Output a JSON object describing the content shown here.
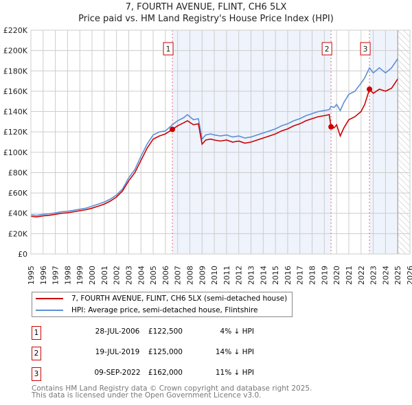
{
  "chart_data": {
    "type": "line",
    "title": "7, FOURTH AVENUE, FLINT, CH6 5LX",
    "subtitle": "Price paid vs. HM Land Registry's House Price Index (HPI)",
    "xlim": [
      1995,
      2026
    ],
    "ylim": [
      0,
      220000
    ],
    "yticks": [
      0,
      20000,
      40000,
      60000,
      80000,
      100000,
      120000,
      140000,
      160000,
      180000,
      200000,
      220000
    ],
    "ytick_labels": [
      "£0",
      "£20K",
      "£40K",
      "£60K",
      "£80K",
      "£100K",
      "£120K",
      "£140K",
      "£160K",
      "£180K",
      "£200K",
      "£220K"
    ],
    "xticks": [
      "1995",
      "1996",
      "1997",
      "1998",
      "1999",
      "2000",
      "2001",
      "2002",
      "2003",
      "2004",
      "2005",
      "2006",
      "2007",
      "2008",
      "2009",
      "2010",
      "2011",
      "2012",
      "2013",
      "2014",
      "2015",
      "2016",
      "2017",
      "2018",
      "2019",
      "2020",
      "2021",
      "2022",
      "2023",
      "2024",
      "2025",
      "2026"
    ],
    "grid": true,
    "series": [
      {
        "name": "7, FOURTH AVENUE, FLINT, CH6 5LX (semi-detached house)",
        "color": "#cc0000",
        "x": [
          1995,
          1995.5,
          1996,
          1996.5,
          1997,
          1997.5,
          1998,
          1998.5,
          1999,
          1999.5,
          2000,
          2000.5,
          2001,
          2001.5,
          2002,
          2002.5,
          2003,
          2003.5,
          2004,
          2004.5,
          2005,
          2005.5,
          2006,
          2006.57,
          2007,
          2007.5,
          2007.8,
          2008.3,
          2008.7,
          2009,
          2009.3,
          2009.7,
          2010,
          2010.5,
          2011,
          2011.5,
          2012,
          2012.5,
          2013,
          2013.5,
          2014,
          2014.5,
          2015,
          2015.5,
          2016,
          2016.5,
          2017,
          2017.5,
          2018,
          2018.5,
          2019,
          2019.4,
          2019.55,
          2019.8,
          2020,
          2020.3,
          2020.6,
          2021,
          2021.5,
          2022,
          2022.3,
          2022.69,
          2023,
          2023.5,
          2024,
          2024.5,
          2025
        ],
        "y": [
          37000,
          36500,
          37500,
          38000,
          39000,
          40000,
          40500,
          41500,
          42500,
          43500,
          45000,
          47000,
          49000,
          52000,
          56000,
          62000,
          72000,
          80000,
          92000,
          104000,
          113000,
          116000,
          118000,
          122500,
          126000,
          129000,
          131000,
          127000,
          128000,
          108000,
          112000,
          113000,
          112000,
          111000,
          112000,
          110000,
          111000,
          109000,
          110000,
          112000,
          114000,
          116000,
          118000,
          121000,
          123000,
          126000,
          128000,
          131000,
          133000,
          135000,
          136000,
          137000,
          125000,
          124000,
          127000,
          116000,
          124000,
          132000,
          135000,
          140000,
          147000,
          162000,
          158000,
          162000,
          160000,
          163000,
          172000
        ]
      },
      {
        "name": "HPI: Average price, semi-detached house, Flintshire",
        "color": "#5b8fd6",
        "x": [
          1995,
          1995.5,
          1996,
          1996.5,
          1997,
          1997.5,
          1998,
          1998.5,
          1999,
          1999.5,
          2000,
          2000.5,
          2001,
          2001.5,
          2002,
          2002.5,
          2003,
          2003.5,
          2004,
          2004.5,
          2005,
          2005.5,
          2006,
          2006.57,
          2007,
          2007.5,
          2007.8,
          2008.3,
          2008.7,
          2009,
          2009.3,
          2009.7,
          2010,
          2010.5,
          2011,
          2011.5,
          2012,
          2012.5,
          2013,
          2013.5,
          2014,
          2014.5,
          2015,
          2015.5,
          2016,
          2016.5,
          2017,
          2017.5,
          2018,
          2018.5,
          2019,
          2019.4,
          2019.55,
          2019.8,
          2020,
          2020.3,
          2020.6,
          2021,
          2021.5,
          2022,
          2022.3,
          2022.69,
          2023,
          2023.5,
          2024,
          2024.5,
          2025
        ],
        "y": [
          38500,
          38000,
          39000,
          39500,
          40500,
          41500,
          42000,
          43000,
          44000,
          45000,
          47000,
          49000,
          51000,
          54000,
          58000,
          64000,
          75000,
          83000,
          96000,
          108000,
          117000,
          120000,
          121000,
          127000,
          131000,
          134000,
          137000,
          132000,
          133000,
          113000,
          117000,
          118000,
          117000,
          116000,
          117000,
          115000,
          116000,
          114000,
          115000,
          117000,
          119000,
          121000,
          123000,
          126000,
          128000,
          131000,
          133000,
          136000,
          138000,
          140000,
          141000,
          142000,
          145000,
          144000,
          147000,
          141000,
          149000,
          157000,
          160000,
          168000,
          173000,
          183000,
          178000,
          183000,
          178000,
          183000,
          192000
        ]
      }
    ],
    "sales": [
      {
        "label": "1",
        "x": 2006.57,
        "y": 122500,
        "date": "28-JUL-2006",
        "price": "£122,500",
        "hpi": "4% ↓ HPI"
      },
      {
        "label": "2",
        "x": 2019.55,
        "y": 125000,
        "date": "19-JUL-2019",
        "price": "£125,000",
        "hpi": "14% ↓ HPI"
      },
      {
        "label": "3",
        "x": 2022.69,
        "y": 162000,
        "date": "09-SEP-2022",
        "price": "£162,000",
        "hpi": "11% ↓ HPI"
      }
    ],
    "shaded_ranges": [
      [
        2006.57,
        2019.55
      ],
      [
        2022.69,
        2025.0
      ]
    ],
    "forecast_start": 2025.0,
    "legend_position": "below"
  },
  "footer": [
    "Contains HM Land Registry data © Crown copyright and database right 2025.",
    "This data is licensed under the Open Government Licence v3.0."
  ]
}
